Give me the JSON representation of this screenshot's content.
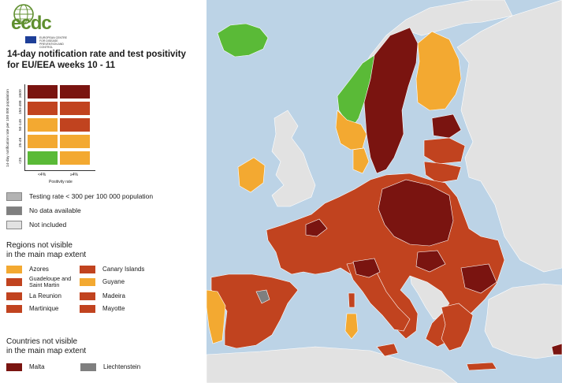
{
  "colors": {
    "sea": "#bcd3e6",
    "not_included": "#e2e2e2",
    "no_data": "#7f7f7f",
    "low_testing": "#b3b3b3",
    "green": "#5aba37",
    "orange": "#f3a931",
    "red": "#c1431f",
    "darkred": "#7a1410"
  },
  "header": {
    "logo_text": "ecdc",
    "agency_text": "EUROPEAN CENTRE FOR DISEASE PREVENTION AND CONTROL",
    "title_line1": "14-day notification rate and test positivity",
    "title_line2": "for EU/EEA weeks 10 - 11"
  },
  "matrix": {
    "y_axis_title": "14-day notification rate per 100 000 population",
    "y_ticks": [
      "≥500",
      "150-499",
      "50-149",
      "25-49",
      "<25"
    ],
    "x_ticks": [
      "<4%",
      "≥4%"
    ],
    "x_axis_title": "Positivity rate",
    "cells": [
      [
        "darkred",
        "darkred"
      ],
      [
        "red",
        "red"
      ],
      [
        "orange",
        "red"
      ],
      [
        "orange",
        "orange"
      ],
      [
        "green",
        "orange"
      ]
    ]
  },
  "legend": [
    {
      "label": "Testing rate < 300 per 100 000 population",
      "color": "low_testing"
    },
    {
      "label": "No data available",
      "color": "no_data"
    },
    {
      "label": "Not included",
      "color": "not_included"
    }
  ],
  "regions_title_1": "Regions not visible",
  "regions_title_2": "in the main map extent",
  "regions_left": [
    {
      "label": "Azores",
      "color": "orange"
    },
    {
      "label": "Guadeloupe and Saint Martin",
      "color": "red"
    },
    {
      "label": "La Reunion",
      "color": "red"
    },
    {
      "label": "Martinique",
      "color": "red"
    }
  ],
  "regions_right": [
    {
      "label": "Canary Islands",
      "color": "red"
    },
    {
      "label": "Guyane",
      "color": "orange"
    },
    {
      "label": "Madeira",
      "color": "red"
    },
    {
      "label": "Mayotte",
      "color": "red"
    }
  ],
  "countries_title_1": "Countries not visible",
  "countries_title_2": "in the main map extent",
  "countries": [
    {
      "label": "Malta",
      "color": "darkred"
    },
    {
      "label": "Liechtenstein",
      "color": "no_data"
    }
  ]
}
